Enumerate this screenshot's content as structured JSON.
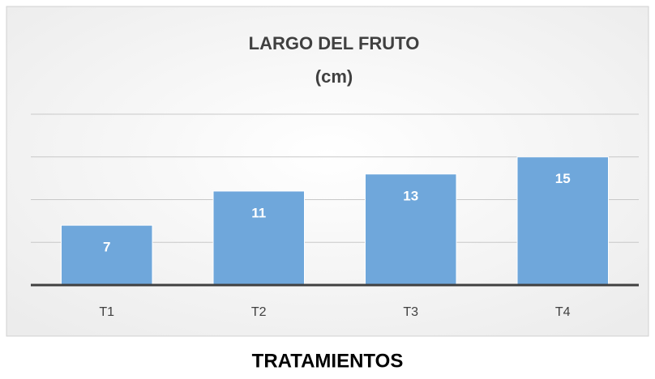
{
  "chart_data": {
    "type": "bar",
    "title": [
      "LARGO DEL FRUTO",
      "(cm)"
    ],
    "x_label": "TRATAMIENTOS",
    "categories": [
      "T1",
      "T2",
      "T3",
      "T4"
    ],
    "values": [
      7,
      11,
      13,
      15
    ],
    "color": "#6fa7db",
    "ylim": [
      0,
      20
    ],
    "yticks": [
      0,
      5,
      10,
      15,
      20
    ],
    "grid": true
  }
}
